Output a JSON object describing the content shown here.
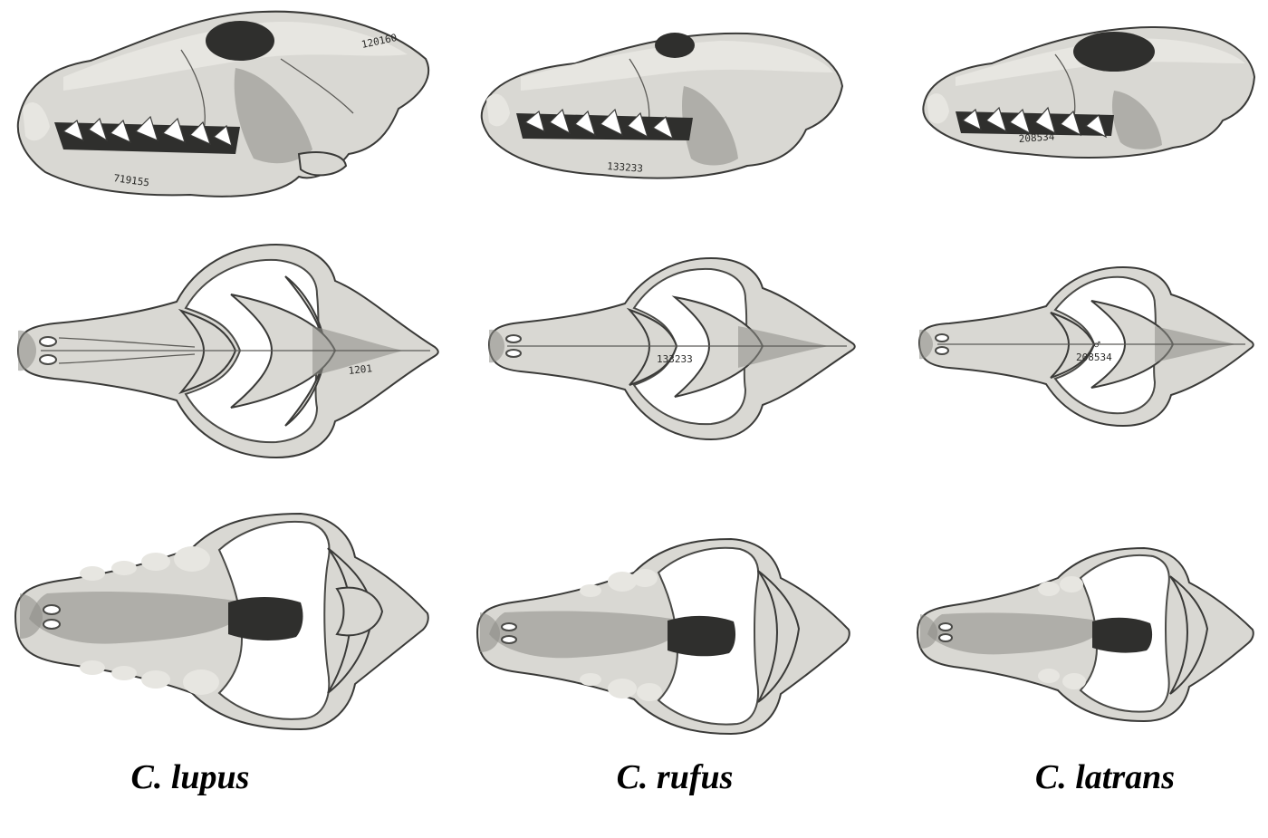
{
  "species": [
    {
      "name": "C. lupus",
      "catalog_lateral": "120160",
      "catalog_lateral_jaw": "719155",
      "catalog_dorsal": "1201"
    },
    {
      "name": "C. rufus",
      "catalog_lateral": "133233",
      "catalog_dorsal": "133233"
    },
    {
      "name": "C. latrans",
      "catalog_lateral": "208534",
      "catalog_dorsal": "208534",
      "sex_mark": "♂"
    }
  ],
  "views": [
    "lateral",
    "dorsal",
    "ventral"
  ],
  "colors": {
    "background": "#ffffff",
    "bone": "#d9d8d3",
    "shadow": "#2f2f2d",
    "label": "#000000"
  }
}
